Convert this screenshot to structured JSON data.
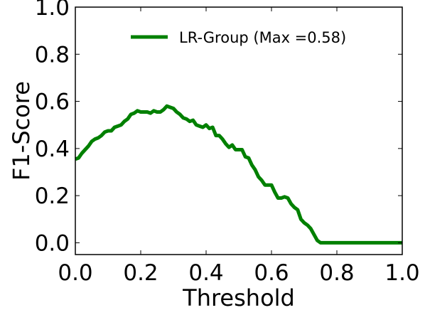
{
  "chart_data": {
    "type": "line",
    "title": "",
    "xlabel": "Threshold",
    "ylabel": "F1-Score",
    "xlim": [
      0.0,
      1.0
    ],
    "ylim": [
      -0.05,
      1.0
    ],
    "xticks": [
      0.0,
      0.2,
      0.4,
      0.6,
      0.8,
      1.0
    ],
    "yticks": [
      0.0,
      0.2,
      0.4,
      0.6,
      0.8,
      1.0
    ],
    "xtick_labels": [
      "0.0",
      "0.2",
      "0.4",
      "0.6",
      "0.8",
      "1.0"
    ],
    "ytick_labels": [
      "0.0",
      "0.2",
      "0.4",
      "0.6",
      "0.8",
      "1.0"
    ],
    "grid": false,
    "legend": {
      "position": "top-right"
    },
    "series": [
      {
        "name": "LR-Group (Max =0.58)",
        "color": "#008000",
        "x": [
          0.0,
          0.01,
          0.02,
          0.03,
          0.04,
          0.05,
          0.06,
          0.07,
          0.08,
          0.09,
          0.1,
          0.11,
          0.12,
          0.13,
          0.14,
          0.15,
          0.16,
          0.17,
          0.18,
          0.19,
          0.2,
          0.21,
          0.22,
          0.23,
          0.24,
          0.25,
          0.26,
          0.27,
          0.28,
          0.29,
          0.3,
          0.31,
          0.32,
          0.33,
          0.34,
          0.35,
          0.36,
          0.37,
          0.38,
          0.39,
          0.4,
          0.41,
          0.42,
          0.43,
          0.44,
          0.45,
          0.46,
          0.47,
          0.48,
          0.49,
          0.5,
          0.51,
          0.52,
          0.53,
          0.54,
          0.55,
          0.56,
          0.57,
          0.58,
          0.59,
          0.6,
          0.61,
          0.62,
          0.63,
          0.64,
          0.65,
          0.66,
          0.67,
          0.68,
          0.69,
          0.7,
          0.71,
          0.72,
          0.73,
          0.74,
          0.75,
          0.8,
          0.85,
          0.9,
          0.95,
          1.0
        ],
        "y": [
          0.355,
          0.36,
          0.38,
          0.395,
          0.41,
          0.43,
          0.44,
          0.445,
          0.455,
          0.47,
          0.475,
          0.475,
          0.49,
          0.495,
          0.5,
          0.515,
          0.525,
          0.545,
          0.55,
          0.56,
          0.555,
          0.555,
          0.555,
          0.55,
          0.56,
          0.555,
          0.555,
          0.565,
          0.58,
          0.575,
          0.57,
          0.555,
          0.545,
          0.53,
          0.525,
          0.515,
          0.52,
          0.5,
          0.495,
          0.49,
          0.5,
          0.485,
          0.49,
          0.455,
          0.455,
          0.44,
          0.42,
          0.405,
          0.415,
          0.395,
          0.395,
          0.395,
          0.365,
          0.36,
          0.33,
          0.31,
          0.28,
          0.265,
          0.245,
          0.245,
          0.245,
          0.215,
          0.19,
          0.19,
          0.195,
          0.19,
          0.165,
          0.15,
          0.14,
          0.1,
          0.085,
          0.075,
          0.06,
          0.035,
          0.01,
          0.0,
          0.0,
          0.0,
          0.0,
          0.0,
          0.0
        ]
      }
    ]
  }
}
